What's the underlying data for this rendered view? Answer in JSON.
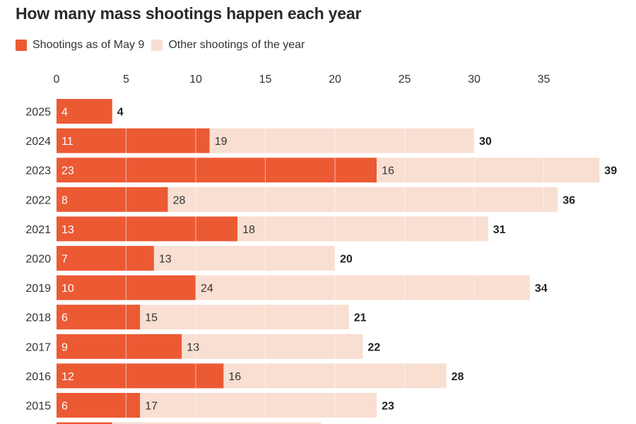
{
  "chart_data": {
    "type": "bar",
    "stacked": true,
    "orientation": "horizontal",
    "title": "How many mass shootings happen each year",
    "xlabel": "",
    "ylabel": "",
    "xlim": [
      0,
      39
    ],
    "ticks": [
      "0",
      "5",
      "10",
      "15",
      "20",
      "25",
      "30",
      "35"
    ],
    "categories": [
      "2025",
      "2024",
      "2023",
      "2022",
      "2021",
      "2020",
      "2019",
      "2018",
      "2017",
      "2016",
      "2015"
    ],
    "series": [
      {
        "name": "Shootings as of May 9",
        "color": "#ec5a34",
        "values": [
          4,
          11,
          23,
          8,
          13,
          7,
          10,
          6,
          9,
          12,
          6
        ]
      },
      {
        "name": "Other shootings of the year",
        "color": "#f9dfd2",
        "values": [
          0,
          19,
          16,
          28,
          18,
          13,
          24,
          15,
          13,
          16,
          17
        ]
      }
    ],
    "totals": [
      4,
      30,
      39,
      36,
      31,
      20,
      34,
      21,
      22,
      28,
      23
    ],
    "partial_row_values": [
      4,
      15
    ],
    "legend_position": "top-left",
    "grid": true
  }
}
